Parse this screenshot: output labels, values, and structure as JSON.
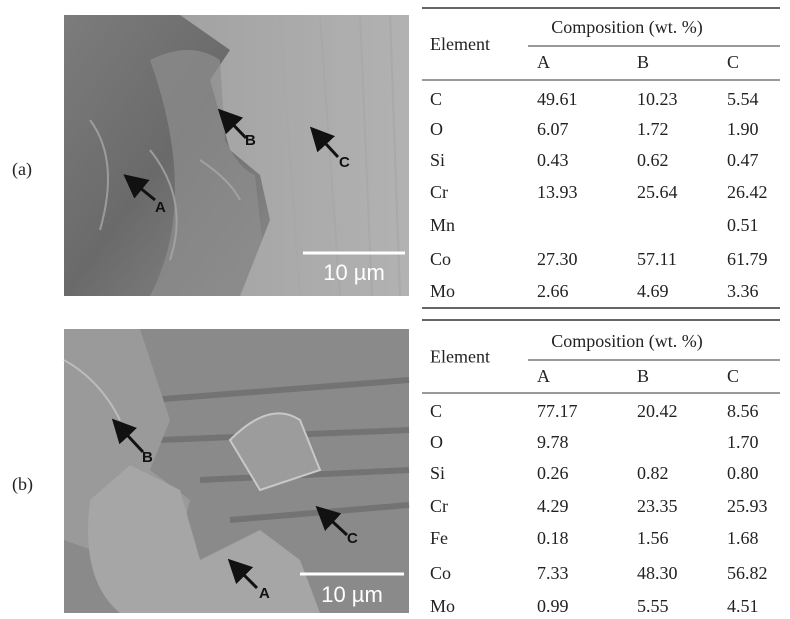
{
  "panels": [
    {
      "label": "(a)",
      "image": {
        "markers": [
          "A",
          "B",
          "C"
        ],
        "scale_bar": "10 µm"
      },
      "table": {
        "row_header": "Element",
        "group_header": "Composition (wt. %)",
        "columns": [
          "A",
          "B",
          "C"
        ],
        "rows": [
          [
            "C",
            "49.61",
            "10.23",
            "5.54"
          ],
          [
            "O",
            "6.07",
            "1.72",
            "1.90"
          ],
          [
            "Si",
            "0.43",
            "0.62",
            "0.47"
          ],
          [
            "Cr",
            "13.93",
            "25.64",
            "26.42"
          ],
          [
            "Mn",
            null,
            null,
            "0.51"
          ],
          [
            "Co",
            "27.30",
            "57.11",
            "61.79"
          ],
          [
            "Mo",
            "2.66",
            "4.69",
            "3.36"
          ]
        ]
      }
    },
    {
      "label": "(b)",
      "image": {
        "markers": [
          "A",
          "B",
          "C"
        ],
        "scale_bar": "10 µm"
      },
      "table": {
        "row_header": "Element",
        "group_header": "Composition (wt. %)",
        "columns": [
          "A",
          "B",
          "C"
        ],
        "rows": [
          [
            "C",
            "77.17",
            "20.42",
            "8.56"
          ],
          [
            "O",
            "9.78",
            null,
            "1.70"
          ],
          [
            "Si",
            "0.26",
            "0.82",
            "0.80"
          ],
          [
            "Cr",
            "4.29",
            "23.35",
            "25.93"
          ],
          [
            "Fe",
            "0.18",
            "1.56",
            "1.68"
          ],
          [
            "Co",
            "7.33",
            "48.30",
            "56.82"
          ],
          [
            "Mo",
            "0.99",
            "5.55",
            "4.51"
          ]
        ]
      }
    }
  ]
}
